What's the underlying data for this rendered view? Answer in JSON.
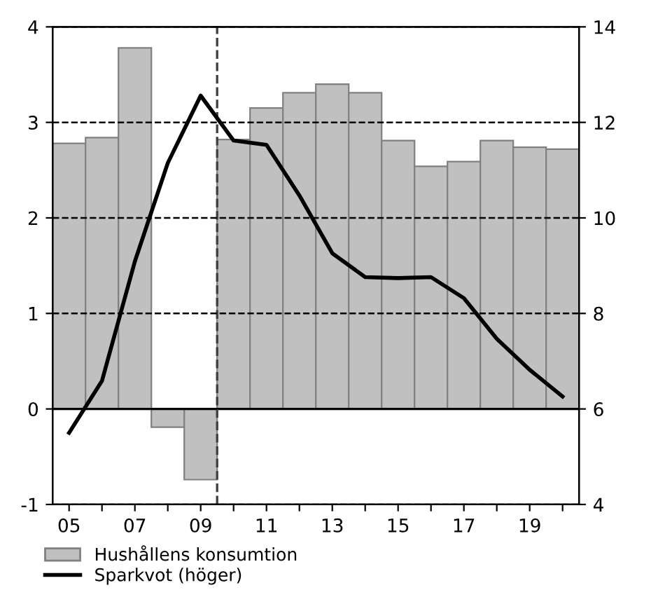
{
  "chart_data": {
    "type": "bar",
    "x": [
      2005,
      2006,
      2007,
      2008,
      2009,
      2010,
      2011,
      2012,
      2013,
      2014,
      2015,
      2016,
      2017,
      2018,
      2019,
      2020
    ],
    "series": [
      {
        "name": "Hushållens konsumtion",
        "color": "#c0c0c0",
        "values": [
          2.78,
          2.84,
          3.78,
          -0.19,
          -0.74,
          2.82,
          3.15,
          3.31,
          3.4,
          3.31,
          2.81,
          2.54,
          2.59,
          2.81,
          2.74,
          2.72
        ]
      },
      {
        "name": "Sparkvot (höger)",
        "type": "line",
        "axis": "y2",
        "color": "#000000",
        "values": [
          5.5,
          6.59,
          9.09,
          11.15,
          12.56,
          11.62,
          11.53,
          10.47,
          9.26,
          8.76,
          8.74,
          8.76,
          8.32,
          7.47,
          6.82,
          6.26
        ]
      }
    ],
    "xlim": [
      2004.5,
      2020.5
    ],
    "xticks": [
      {
        "value": 2005,
        "label": "05"
      },
      {
        "value": 2006,
        "label": null
      },
      {
        "value": 2007,
        "label": "07"
      },
      {
        "value": 2008,
        "label": null
      },
      {
        "value": 2009,
        "label": "09"
      },
      {
        "value": 2010,
        "label": null
      },
      {
        "value": 2011,
        "label": "11"
      },
      {
        "value": 2012,
        "label": null
      },
      {
        "value": 2013,
        "label": "13"
      },
      {
        "value": 2014,
        "label": null
      },
      {
        "value": 2015,
        "label": "15"
      },
      {
        "value": 2016,
        "label": null
      },
      {
        "value": 2017,
        "label": "17"
      },
      {
        "value": 2018,
        "label": null
      },
      {
        "value": 2019,
        "label": "19"
      },
      {
        "value": 2020,
        "label": null
      }
    ],
    "ylim": [
      -1,
      4
    ],
    "yticks": [
      -1,
      0,
      1,
      2,
      3,
      4
    ],
    "y2lim": [
      4,
      14
    ],
    "y2ticks": [
      4,
      6,
      8,
      10,
      12,
      14
    ],
    "ref_lines": [
      {
        "axis": "y",
        "value": 0,
        "color": "#000000",
        "line_style": "solid"
      },
      {
        "axis": "x",
        "value": 2009.5,
        "color": "#404040",
        "line_style": "dashed"
      }
    ],
    "grid": "y",
    "legend": "bottom",
    "marker": "none",
    "line_style": "solid"
  }
}
